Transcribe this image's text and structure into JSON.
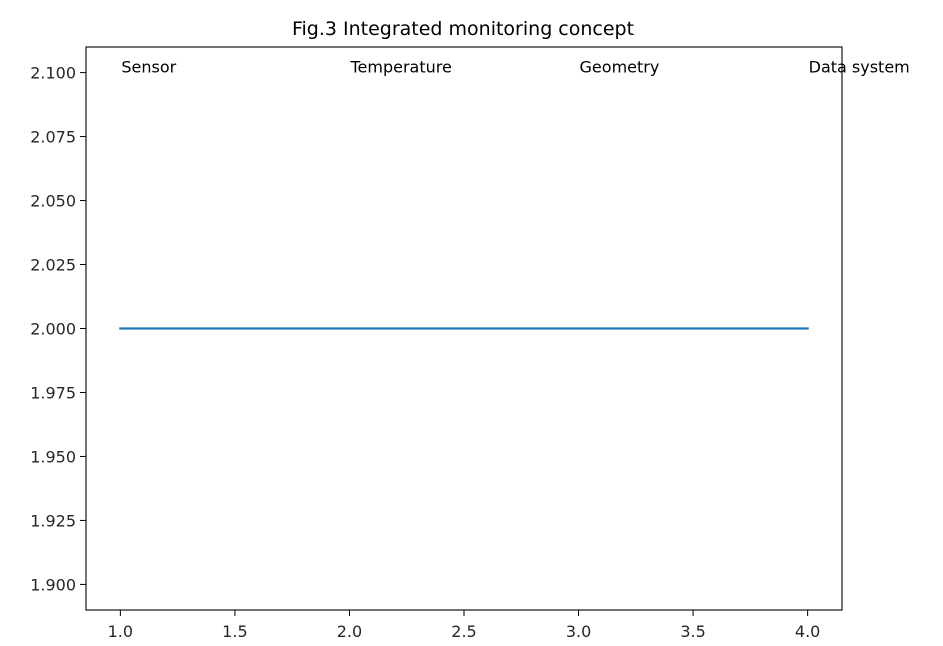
{
  "chart_data": {
    "type": "line",
    "title": "Fig.3 Integrated monitoring concept",
    "xlabel": "",
    "ylabel": "",
    "xlim": [
      0.85,
      4.15
    ],
    "ylim": [
      1.89,
      2.11
    ],
    "x_ticks": [
      1.0,
      1.5,
      2.0,
      2.5,
      3.0,
      3.5,
      4.0
    ],
    "x_tick_labels": [
      "1.0",
      "1.5",
      "2.0",
      "2.5",
      "3.0",
      "3.5",
      "4.0"
    ],
    "y_ticks": [
      1.9,
      1.925,
      1.95,
      1.975,
      2.0,
      2.025,
      2.05,
      2.075,
      2.1
    ],
    "y_tick_labels": [
      "1.900",
      "1.925",
      "1.950",
      "1.975",
      "2.000",
      "2.025",
      "2.050",
      "2.075",
      "2.100"
    ],
    "grid": false,
    "series": [
      {
        "x": [
          1,
          2,
          3,
          4
        ],
        "y": [
          2,
          2,
          2,
          2
        ],
        "color": "#1f77b4"
      }
    ],
    "annotations": [
      {
        "text": "Sensor",
        "x": 1,
        "y": 2.1
      },
      {
        "text": "Temperature",
        "x": 2,
        "y": 2.1
      },
      {
        "text": "Geometry",
        "x": 3,
        "y": 2.1
      },
      {
        "text": "Data system",
        "x": 4,
        "y": 2.1
      }
    ]
  }
}
